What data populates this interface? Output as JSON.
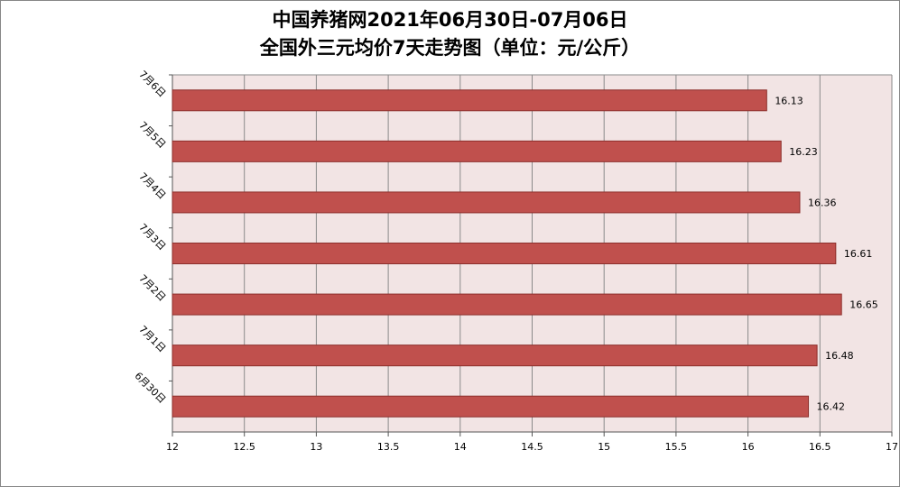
{
  "title_line1": "中国养猪网2021年06月30日-07月06日",
  "title_line2": "全国外三元均价7天走势图（单位：元/公斤）",
  "chart_data": {
    "type": "bar",
    "orientation": "horizontal",
    "categories": [
      "6月30日",
      "7月1日",
      "7月2日",
      "7月3日",
      "7月4日",
      "7月5日",
      "7月6日"
    ],
    "values": [
      16.42,
      16.48,
      16.65,
      16.61,
      16.36,
      16.23,
      16.13
    ],
    "value_labels": [
      "16.42",
      "16.48",
      "16.65",
      "16.61",
      "16.36",
      "16.23",
      "16.13"
    ],
    "xlim": [
      12,
      17
    ],
    "x_ticks": [
      12,
      12.5,
      13,
      13.5,
      14,
      14.5,
      15,
      15.5,
      16,
      16.5,
      17
    ],
    "x_tick_labels": [
      "12",
      "12.5",
      "13",
      "13.5",
      "14",
      "14.5",
      "15",
      "15.5",
      "16",
      "16.5",
      "17"
    ],
    "grid": true,
    "legend": "none",
    "colors": {
      "bar_fill": "#c0504d",
      "bar_stroke": "#8c2f2c",
      "plot_background": "#f2e4e4",
      "gridline": "#8a8a8a"
    }
  }
}
